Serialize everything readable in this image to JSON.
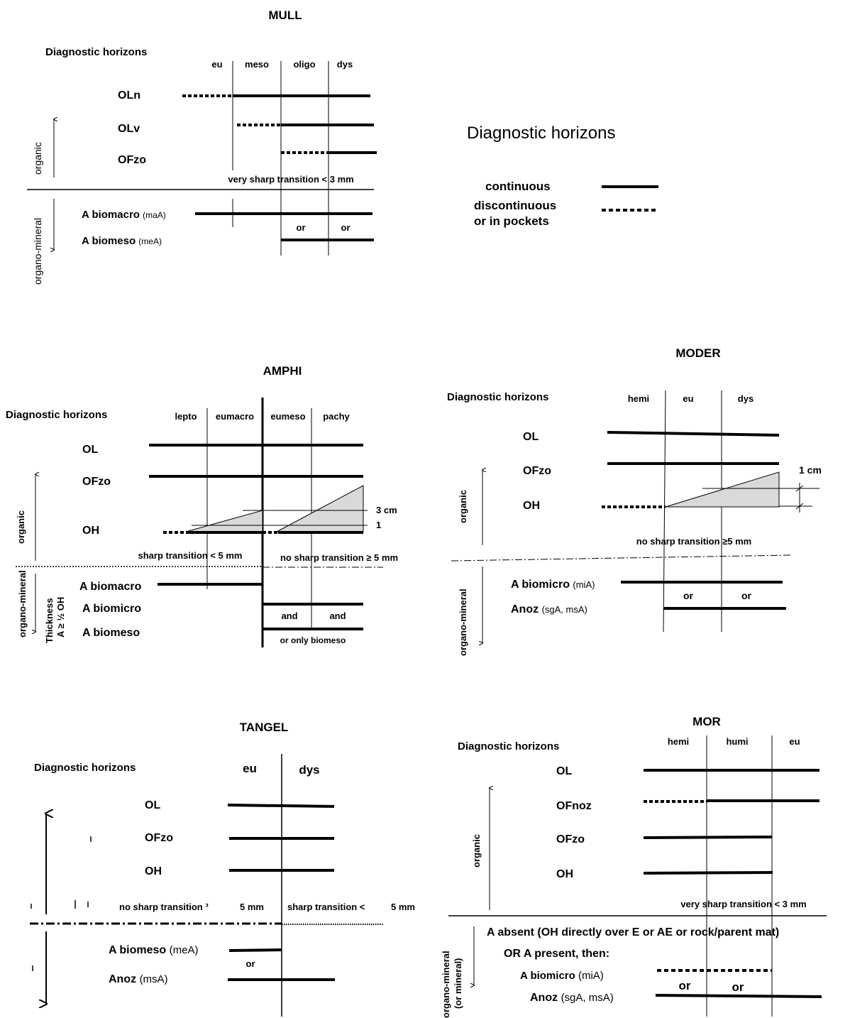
{
  "mull": {
    "title": "MULL",
    "diag": "Diagnostic horizons",
    "cols": [
      "eu",
      "meso",
      "oligo",
      "dys"
    ],
    "rows": [
      "OLn",
      "OLv",
      "OFzo"
    ],
    "organic": "organic",
    "organo_mineral": "organo-mineral",
    "transition": "very sharp transition < 3 mm",
    "a1": "A biomacro",
    "a1s": "(maA)",
    "a2": "A biomeso",
    "a2s": "(meA)",
    "or": "or"
  },
  "legend": {
    "title": "Diagnostic horizons",
    "continuous": "continuous",
    "discontinuous_1": "discontinuous",
    "discontinuous_2": "or in pockets"
  },
  "amphi": {
    "title": "AMPHI",
    "diag": "Diagnostic horizons",
    "cols": [
      "lepto",
      "eumacro",
      "eumeso",
      "pachy"
    ],
    "rows": [
      "OL",
      "OFzo",
      "OH"
    ],
    "organic": "organic",
    "organo_mineral": "organo-mineral",
    "thickness_1": "Thickness",
    "thickness_2": "A ≥ ½ OH",
    "cm3": "3 cm",
    "one": "1",
    "sharp": "sharp transition < 5 mm",
    "nosharp": "no sharp transition ≥ 5 mm",
    "a1": "A biomacro",
    "a2": "A biomicro",
    "a3": "A biomeso",
    "and": "and",
    "only": "or only biomeso"
  },
  "moder": {
    "title": "MODER",
    "diag": "Diagnostic horizons",
    "cols": [
      "hemi",
      "eu",
      "dys"
    ],
    "rows": [
      "OL",
      "OFzo",
      "OH"
    ],
    "cm1": "1 cm",
    "organic": "organic",
    "organo_mineral": "organo-mineral",
    "transition": "no sharp transition ≥5 mm",
    "a1": "A biomicro",
    "a1s": "(miA)",
    "a2": "Anoz",
    "a2s": "(sgA, msA)",
    "or": "or"
  },
  "tangel": {
    "title": "TANGEL",
    "diag": "Diagnostic horizons",
    "cols": [
      "eu",
      "dys"
    ],
    "rows": [
      "OL",
      "OFzo",
      "OH"
    ],
    "nosharp": "no sharp transition ³",
    "nosharp_val": "5 mm",
    "sharp": "sharp transition <",
    "sharp_val": "5 mm",
    "a1": "A biomeso",
    "a1s": "(meA)",
    "a2": "Anoz",
    "a2s": "(msA)",
    "or": "or"
  },
  "mor": {
    "title": "MOR",
    "diag": "Diagnostic horizons",
    "cols": [
      "hemi",
      "humi",
      "eu"
    ],
    "rows": [
      "OL",
      "OFnoz",
      "OFzo",
      "OH"
    ],
    "organic": "organic",
    "organo_mineral_1": "organo-mineral",
    "organo_mineral_2": "(or mineral)",
    "transition": "very sharp transition < 3 mm",
    "absent": "A absent (OH directly over E or AE or rock/parent mat)",
    "present": "OR  A present, then:",
    "a1": "A biomicro",
    "a1s": "(miA)",
    "a2": "Anoz",
    "a2s": "(sgA, msA)",
    "or": "or"
  }
}
